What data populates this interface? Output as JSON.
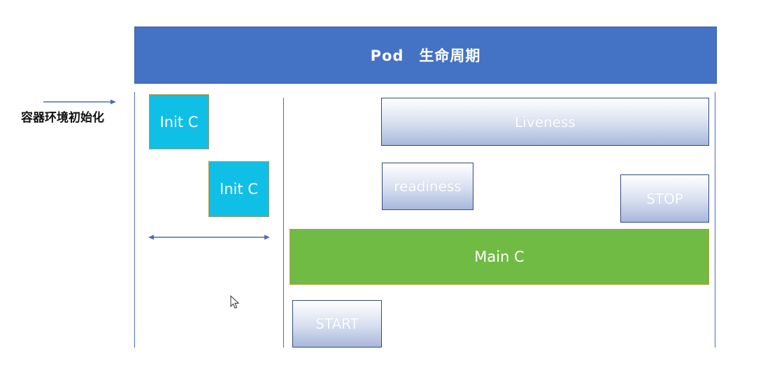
{
  "header": {
    "title": "Pod　生命周期"
  },
  "side": {
    "label": "容器环境初始化"
  },
  "init_containers": [
    {
      "label": "Init C"
    },
    {
      "label": "Init C"
    }
  ],
  "probes": {
    "liveness": "Liveness",
    "readiness": "readiness"
  },
  "main_container": {
    "label": "Main C"
  },
  "hooks": {
    "start": "START",
    "stop": "STOP"
  },
  "colors": {
    "header": "#4472c4",
    "init": "#10bfe6",
    "main": "#70bb44",
    "line": "#4a6fb3"
  },
  "icons": [
    "right-arrow-icon",
    "double-arrow-icon",
    "mouse-cursor-icon"
  ]
}
